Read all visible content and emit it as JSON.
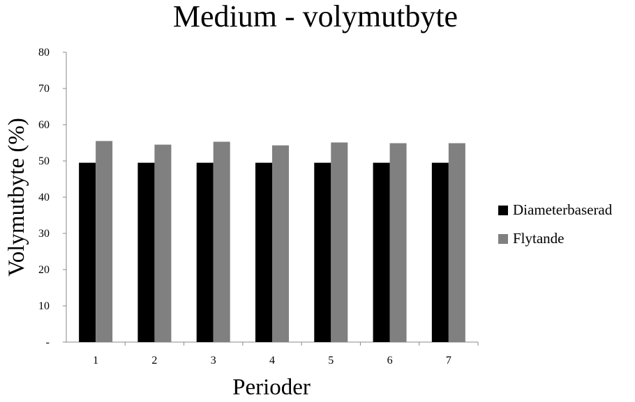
{
  "chart_data": {
    "type": "bar",
    "title": "Medium - volymutbyte",
    "xlabel": "Perioder",
    "ylabel": "Volymutbyte (%)",
    "categories": [
      "1",
      "2",
      "3",
      "4",
      "5",
      "6",
      "7"
    ],
    "series": [
      {
        "name": "Diameterbaserad",
        "color": "#000000",
        "values": [
          49.5,
          49.5,
          49.5,
          49.5,
          49.5,
          49.5,
          49.5
        ]
      },
      {
        "name": "Flytande",
        "color": "#808080",
        "values": [
          55.5,
          54.5,
          55.3,
          54.3,
          55.1,
          54.9,
          54.9
        ]
      }
    ],
    "ylim": [
      0,
      80
    ],
    "yticks": [
      {
        "value": 0,
        "label": "-"
      },
      {
        "value": 10,
        "label": "10"
      },
      {
        "value": 20,
        "label": "20"
      },
      {
        "value": 30,
        "label": "30"
      },
      {
        "value": 40,
        "label": "40"
      },
      {
        "value": 50,
        "label": "50"
      },
      {
        "value": 60,
        "label": "60"
      },
      {
        "value": 70,
        "label": "70"
      },
      {
        "value": 80,
        "label": "80"
      }
    ],
    "grid": false,
    "legend_position": "right"
  }
}
